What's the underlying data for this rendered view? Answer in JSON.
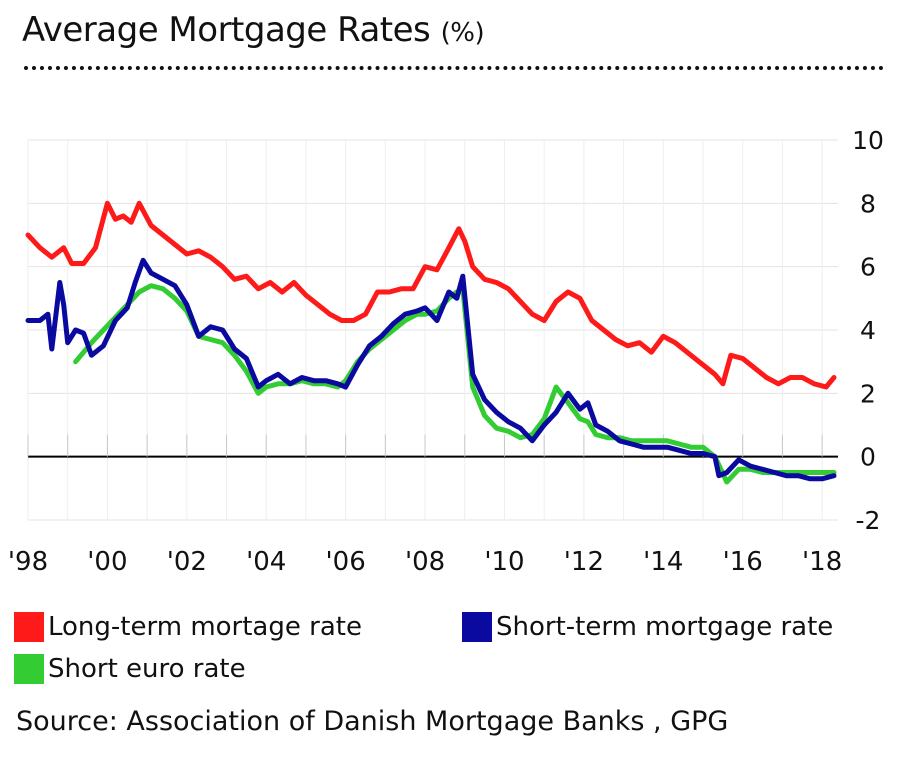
{
  "title": "Average Mortgage Rates",
  "title_unit": "(%)",
  "source": "Source: Association of Danish Mortgage Banks , GPG",
  "chart_data": {
    "type": "line",
    "title": "Average Mortgage Rates (%)",
    "xlabel": "",
    "ylabel": "",
    "xlim": [
      1998,
      2018.4
    ],
    "ylim": [
      -2,
      10
    ],
    "yticks": [
      -2,
      0,
      2,
      4,
      6,
      8,
      10
    ],
    "xticks": [
      {
        "label": "'98",
        "x": 1998
      },
      {
        "label": "'00",
        "x": 2000
      },
      {
        "label": "'02",
        "x": 2002
      },
      {
        "label": "'04",
        "x": 2004
      },
      {
        "label": "'06",
        "x": 2006
      },
      {
        "label": "'08",
        "x": 2008
      },
      {
        "label": "'10",
        "x": 2010
      },
      {
        "label": "'12",
        "x": 2012
      },
      {
        "label": "'14",
        "x": 2014
      },
      {
        "label": "'16",
        "x": 2016
      },
      {
        "label": "'18",
        "x": 2018
      }
    ],
    "grid": true,
    "legend_position": "bottom",
    "series": [
      {
        "name": "Long-term mortage rate",
        "color": "#ff1a1a",
        "x": [
          1998.0,
          1998.3,
          1998.6,
          1998.9,
          1999.1,
          1999.4,
          1999.7,
          2000.0,
          2000.2,
          2000.4,
          2000.6,
          2000.8,
          2001.1,
          2001.4,
          2001.7,
          2002.0,
          2002.3,
          2002.6,
          2002.9,
          2003.2,
          2003.5,
          2003.8,
          2004.1,
          2004.4,
          2004.7,
          2005.0,
          2005.3,
          2005.6,
          2005.9,
          2006.2,
          2006.5,
          2006.8,
          2007.1,
          2007.4,
          2007.7,
          2008.0,
          2008.3,
          2008.6,
          2008.85,
          2009.0,
          2009.2,
          2009.5,
          2009.8,
          2010.1,
          2010.4,
          2010.7,
          2011.0,
          2011.3,
          2011.6,
          2011.9,
          2012.2,
          2012.5,
          2012.8,
          2013.1,
          2013.4,
          2013.7,
          2014.0,
          2014.3,
          2014.6,
          2014.9,
          2015.1,
          2015.3,
          2015.5,
          2015.7,
          2016.0,
          2016.3,
          2016.6,
          2016.9,
          2017.2,
          2017.5,
          2017.8,
          2018.1,
          2018.3
        ],
        "y": [
          7.0,
          6.6,
          6.3,
          6.6,
          6.1,
          6.1,
          6.6,
          8.0,
          7.5,
          7.6,
          7.4,
          8.0,
          7.3,
          7.0,
          6.7,
          6.4,
          6.5,
          6.3,
          6.0,
          5.6,
          5.7,
          5.3,
          5.5,
          5.2,
          5.5,
          5.1,
          4.8,
          4.5,
          4.3,
          4.3,
          4.5,
          5.2,
          5.2,
          5.3,
          5.3,
          6.0,
          5.9,
          6.6,
          7.2,
          6.8,
          6.0,
          5.6,
          5.5,
          5.3,
          4.9,
          4.5,
          4.3,
          4.9,
          5.2,
          5.0,
          4.3,
          4.0,
          3.7,
          3.5,
          3.6,
          3.3,
          3.8,
          3.6,
          3.3,
          3.0,
          2.8,
          2.6,
          2.3,
          3.2,
          3.1,
          2.8,
          2.5,
          2.3,
          2.5,
          2.5,
          2.3,
          2.2,
          2.5
        ]
      },
      {
        "name": "Short-term mortgage rate",
        "color": "#0a0aa0",
        "x": [
          1998.0,
          1998.3,
          1998.5,
          1998.6,
          1998.8,
          1998.9,
          1999.0,
          1999.2,
          1999.4,
          1999.6,
          1999.9,
          2000.2,
          2000.5,
          2000.7,
          2000.9,
          2001.1,
          2001.4,
          2001.7,
          2002.0,
          2002.3,
          2002.6,
          2002.9,
          2003.2,
          2003.5,
          2003.8,
          2004.0,
          2004.3,
          2004.6,
          2004.9,
          2005.2,
          2005.5,
          2005.8,
          2006.0,
          2006.3,
          2006.6,
          2006.9,
          2007.2,
          2007.5,
          2007.8,
          2008.0,
          2008.3,
          2008.6,
          2008.8,
          2008.95,
          2009.2,
          2009.5,
          2009.8,
          2010.1,
          2010.4,
          2010.7,
          2011.0,
          2011.3,
          2011.6,
          2011.9,
          2012.1,
          2012.3,
          2012.6,
          2012.9,
          2013.2,
          2013.5,
          2013.8,
          2014.1,
          2014.4,
          2014.7,
          2015.0,
          2015.3,
          2015.4,
          2015.6,
          2015.9,
          2016.2,
          2016.5,
          2016.8,
          2017.1,
          2017.4,
          2017.7,
          2018.0,
          2018.3
        ],
        "y": [
          4.3,
          4.3,
          4.5,
          3.4,
          5.5,
          4.8,
          3.6,
          4.0,
          3.9,
          3.2,
          3.5,
          4.3,
          4.7,
          5.5,
          6.2,
          5.8,
          5.6,
          5.4,
          4.8,
          3.8,
          4.1,
          4.0,
          3.4,
          3.1,
          2.2,
          2.4,
          2.6,
          2.3,
          2.5,
          2.4,
          2.4,
          2.3,
          2.2,
          2.9,
          3.5,
          3.8,
          4.2,
          4.5,
          4.6,
          4.7,
          4.3,
          5.2,
          5.0,
          5.7,
          2.6,
          1.8,
          1.4,
          1.1,
          0.9,
          0.5,
          1.0,
          1.4,
          2.0,
          1.5,
          1.7,
          1.0,
          0.8,
          0.5,
          0.4,
          0.3,
          0.3,
          0.3,
          0.2,
          0.1,
          0.1,
          0.0,
          -0.6,
          -0.5,
          -0.1,
          -0.3,
          -0.4,
          -0.5,
          -0.6,
          -0.6,
          -0.7,
          -0.7,
          -0.6
        ]
      },
      {
        "name": "Short euro rate",
        "color": "#33cc33",
        "x": [
          1999.2,
          1999.4,
          1999.6,
          1999.9,
          2000.2,
          2000.5,
          2000.8,
          2001.1,
          2001.4,
          2001.7,
          2002.0,
          2002.3,
          2002.6,
          2002.9,
          2003.2,
          2003.5,
          2003.8,
          2004.0,
          2004.3,
          2004.6,
          2004.9,
          2005.2,
          2005.5,
          2005.8,
          2006.0,
          2006.3,
          2006.6,
          2006.9,
          2007.2,
          2007.5,
          2007.8,
          2008.0,
          2008.3,
          2008.6,
          2008.8,
          2008.95,
          2009.2,
          2009.5,
          2009.8,
          2010.1,
          2010.4,
          2010.7,
          2011.0,
          2011.3,
          2011.6,
          2011.9,
          2012.1,
          2012.3,
          2012.6,
          2012.9,
          2013.2,
          2013.5,
          2013.8,
          2014.1,
          2014.4,
          2014.7,
          2015.0,
          2015.3,
          2015.6,
          2015.9,
          2016.2,
          2016.5,
          2016.8,
          2017.1,
          2017.4,
          2017.7,
          2018.0,
          2018.3
        ],
        "y": [
          3.0,
          3.3,
          3.6,
          4.0,
          4.4,
          4.8,
          5.2,
          5.4,
          5.3,
          5.0,
          4.6,
          3.8,
          3.7,
          3.6,
          3.2,
          2.7,
          2.0,
          2.2,
          2.3,
          2.3,
          2.4,
          2.3,
          2.3,
          2.2,
          2.4,
          3.0,
          3.4,
          3.7,
          4.0,
          4.3,
          4.5,
          4.5,
          4.6,
          5.0,
          5.2,
          5.3,
          2.2,
          1.3,
          0.9,
          0.8,
          0.6,
          0.7,
          1.2,
          2.2,
          1.7,
          1.2,
          1.1,
          0.7,
          0.6,
          0.6,
          0.5,
          0.5,
          0.5,
          0.5,
          0.4,
          0.3,
          0.3,
          0.0,
          -0.8,
          -0.4,
          -0.4,
          -0.5,
          -0.5,
          -0.5,
          -0.5,
          -0.5,
          -0.5,
          -0.5
        ]
      }
    ]
  }
}
